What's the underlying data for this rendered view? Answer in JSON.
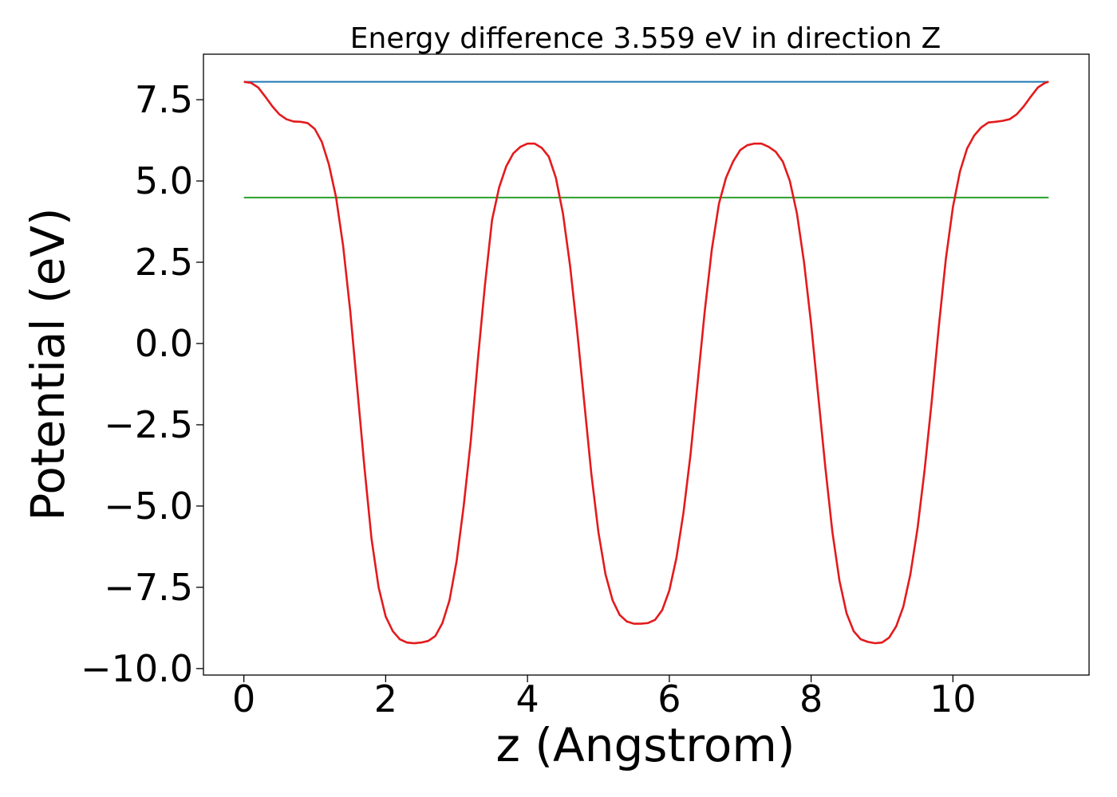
{
  "chart_data": {
    "type": "line",
    "title": "Energy difference 3.559 eV in direction Z",
    "xlabel": "z (Angstrom)",
    "ylabel": "Potential (eV)",
    "xlim": [
      -0.57,
      11.92
    ],
    "ylim": [
      -10.2,
      8.9
    ],
    "x_ticks": [
      0,
      2,
      4,
      6,
      8,
      10
    ],
    "x_tick_labels": [
      "0",
      "2",
      "4",
      "6",
      "8",
      "10"
    ],
    "y_ticks": [
      -10.0,
      -7.5,
      -5.0,
      -2.5,
      0.0,
      2.5,
      5.0,
      7.5
    ],
    "y_tick_labels": [
      "−10.0",
      "−7.5",
      "−5.0",
      "−2.5",
      "0.0",
      "2.5",
      "5.0",
      "7.5"
    ],
    "grid": false,
    "legend": "none",
    "series": [
      {
        "color": "#1f77b4",
        "x": [
          0.0,
          11.35
        ],
        "y": [
          8.05,
          8.05
        ]
      },
      {
        "color": "#2ca02c",
        "x": [
          0.0,
          11.35
        ],
        "y": [
          4.49,
          4.49
        ]
      },
      {
        "color": "#e41a1c",
        "x": [
          0.0,
          0.1,
          0.2,
          0.3,
          0.4,
          0.5,
          0.6,
          0.7,
          0.8,
          0.9,
          1.0,
          1.1,
          1.2,
          1.3,
          1.4,
          1.5,
          1.6,
          1.7,
          1.8,
          1.9,
          2.0,
          2.1,
          2.2,
          2.3,
          2.4,
          2.5,
          2.6,
          2.7,
          2.8,
          2.9,
          3.0,
          3.1,
          3.2,
          3.3,
          3.4,
          3.5,
          3.6,
          3.7,
          3.8,
          3.9,
          4.0,
          4.1,
          4.2,
          4.3,
          4.4,
          4.5,
          4.6,
          4.7,
          4.8,
          4.9,
          5.0,
          5.1,
          5.2,
          5.3,
          5.4,
          5.5,
          5.6,
          5.7,
          5.8,
          5.9,
          6.0,
          6.1,
          6.2,
          6.3,
          6.4,
          6.5,
          6.6,
          6.7,
          6.8,
          6.9,
          7.0,
          7.1,
          7.2,
          7.3,
          7.4,
          7.5,
          7.6,
          7.7,
          7.8,
          7.9,
          8.0,
          8.1,
          8.2,
          8.3,
          8.4,
          8.5,
          8.6,
          8.7,
          8.8,
          8.9,
          9.0,
          9.1,
          9.2,
          9.3,
          9.4,
          9.5,
          9.6,
          9.7,
          9.8,
          9.9,
          10.0,
          10.1,
          10.2,
          10.3,
          10.4,
          10.5,
          10.6,
          10.7,
          10.8,
          10.9,
          11.0,
          11.1,
          11.2,
          11.3,
          11.35
        ],
        "y": [
          8.05,
          8.02,
          7.88,
          7.6,
          7.3,
          7.05,
          6.9,
          6.83,
          6.82,
          6.78,
          6.6,
          6.2,
          5.5,
          4.5,
          3.0,
          1.0,
          -1.4,
          -3.8,
          -6.0,
          -7.5,
          -8.4,
          -8.85,
          -9.1,
          -9.2,
          -9.22,
          -9.2,
          -9.15,
          -9.0,
          -8.6,
          -7.9,
          -6.7,
          -5.0,
          -3.0,
          -0.5,
          1.8,
          3.8,
          4.8,
          5.45,
          5.85,
          6.05,
          6.15,
          6.15,
          6.02,
          5.75,
          5.1,
          4.0,
          2.4,
          0.4,
          -1.8,
          -4.0,
          -5.8,
          -7.1,
          -7.9,
          -8.35,
          -8.55,
          -8.62,
          -8.62,
          -8.6,
          -8.5,
          -8.2,
          -7.6,
          -6.6,
          -5.2,
          -3.4,
          -1.2,
          1.0,
          2.9,
          4.3,
          5.1,
          5.6,
          5.95,
          6.1,
          6.15,
          6.15,
          6.05,
          5.9,
          5.6,
          5.0,
          4.0,
          2.5,
          0.6,
          -1.6,
          -3.8,
          -5.8,
          -7.3,
          -8.3,
          -8.85,
          -9.1,
          -9.18,
          -9.22,
          -9.2,
          -9.05,
          -8.7,
          -8.1,
          -7.1,
          -5.7,
          -3.9,
          -1.8,
          0.5,
          2.6,
          4.2,
          5.3,
          6.0,
          6.4,
          6.65,
          6.8,
          6.82,
          6.85,
          6.9,
          7.05,
          7.3,
          7.6,
          7.88,
          8.02,
          8.05
        ]
      }
    ]
  }
}
